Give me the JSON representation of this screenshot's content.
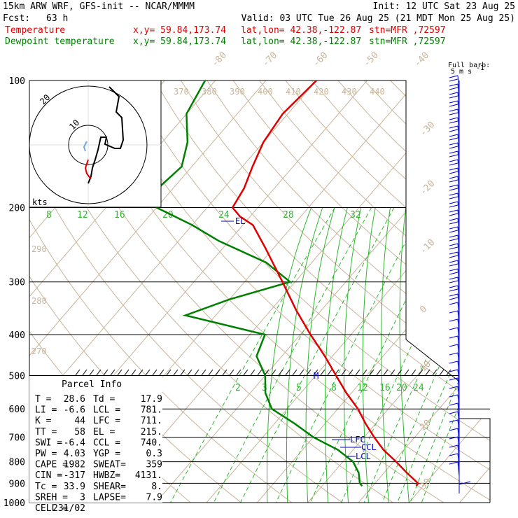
{
  "header": {
    "model": "15km ARW WRF, GFS-init  -- NCAR/MMMM",
    "init": "Init: 12 UTC Sat 23 Aug 25",
    "fcst_label": "Fcst:",
    "fcst_value": "63 h",
    "valid": "Valid: 03 UTC Tue 26 Aug 25 (21 MDT Mon 25 Aug 25)",
    "line3_name": "Temperature",
    "line4_name": "Dewpoint temperature",
    "xy": "x,y= 59.84,173.74",
    "latlon": "lat,lon= 42.38,-122.87",
    "stn": "stn=MFR ,72597"
  },
  "colors": {
    "temperature": "#e00000",
    "dewpoint": "#008000",
    "isotherm": "#c9b59a",
    "mixing_ratio": "#2db82d",
    "parcel": "#000000",
    "barb": "#0000cc",
    "header_black": "#000000"
  },
  "barb_legend": {
    "line1": "Full barb:",
    "line2": "5 m s",
    "sup": "-1"
  },
  "hodograph": {
    "rings": [
      "10",
      "20"
    ],
    "units": "kts"
  },
  "levels_markers": {
    "lfc": "LFC",
    "ccl": "CCL",
    "lcl": "LCL",
    "el": "EL",
    "m": "M"
  },
  "parcel_info": {
    "title": "Parcel Info",
    "rows": [
      [
        "T  =",
        "28.6",
        "Td =",
        "17.9"
      ],
      [
        "LI =",
        "-6.6",
        "LCL =",
        "781."
      ],
      [
        "K  =",
        "44",
        "LFC =",
        "711."
      ],
      [
        "TT =",
        "58",
        "EL  =",
        "215."
      ],
      [
        "SWI =",
        "-6.4",
        "CCL =",
        "740."
      ],
      [
        "PW =",
        "4.03",
        "YGP =",
        "0.3"
      ],
      [
        "CAPE =",
        "1982",
        "SWEAT=",
        "359"
      ],
      [
        "CIN =",
        "-317",
        "HWBZ=",
        "4131."
      ],
      [
        "Tc =",
        "33.9",
        "SHEAR=",
        "8."
      ],
      [
        "SREH =",
        "3",
        "LAPSE=",
        "7.9"
      ],
      [
        "CELL =",
        "231/02",
        "",
        ""
      ]
    ]
  },
  "chart_data": {
    "type": "line",
    "subtype": "skew-T log-P sounding",
    "pressure_levels": [
      100,
      200,
      300,
      400,
      500,
      600,
      700,
      800,
      900,
      1000
    ],
    "temperature_isotherm_labels": [
      -80,
      -70,
      -60,
      -50,
      -40,
      -30,
      -20,
      -10,
      0,
      10,
      20,
      30,
      40
    ],
    "theta_labels_top": [
      370,
      380,
      390,
      400,
      410,
      420,
      430,
      440
    ],
    "theta_labels_left": [
      290,
      280,
      270
    ],
    "mixing_ratio_labels_upper": [
      8,
      12,
      16,
      20,
      24,
      28,
      32
    ],
    "mixing_ratio_labels_lower": [
      2,
      3,
      5,
      8,
      12,
      16,
      20,
      24
    ],
    "series": [
      {
        "name": "Temperature",
        "pressure": [
          913,
          900,
          850,
          800,
          750,
          700,
          650,
          600,
          550,
          500,
          450,
          400,
          350,
          300,
          250,
          220,
          210,
          200,
          180,
          160,
          140,
          120,
          100
        ],
        "temperature": [
          28.6,
          28.5,
          24.5,
          20.5,
          16.0,
          12.0,
          8.0,
          4.0,
          -1.0,
          -6.0,
          -11.5,
          -18.0,
          -25.0,
          -32.5,
          -41.5,
          -48.0,
          -52.0,
          -55.0,
          -56.0,
          -58.0,
          -60.0,
          -61.0,
          -60.0
        ]
      },
      {
        "name": "Dewpoint temperature",
        "pressure": [
          913,
          900,
          850,
          800,
          750,
          700,
          650,
          600,
          550,
          500,
          450,
          400,
          360,
          330,
          300,
          270,
          240,
          220,
          200,
          180,
          160,
          140,
          120,
          100
        ],
        "temperature": [
          17.9,
          17.0,
          15.0,
          12.0,
          7.0,
          0.0,
          -6.0,
          -13.0,
          -17.0,
          -20.0,
          -25.0,
          -27.0,
          -46.0,
          -40.0,
          -31.0,
          -39.0,
          -52.0,
          -60.0,
          -70.0,
          -73.0,
          -72.0,
          -75.0,
          -80.0,
          -82.0
        ]
      }
    ],
    "ylim": [
      1000,
      100
    ],
    "xlim_at_1000hPa": [
      -45,
      46
    ]
  }
}
